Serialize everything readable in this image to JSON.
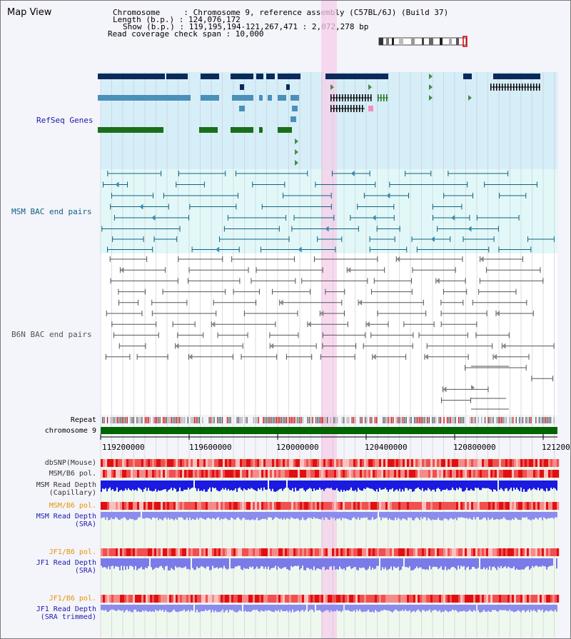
{
  "title": "Map View",
  "info": {
    "chromosome_line": "Chromosome     : Chromosome 9, reference assembly (C57BL/6J) (Build 37)",
    "length_line": "Length (b.p.) : 124,076,172",
    "show_line": "Show (b.p.) : 119,195,194-121,267,471 : 2,072,278 bp",
    "span_line": "Read coverage check span : 10,000"
  },
  "tracks": {
    "refseq": "RefSeq Genes",
    "msm_bac": "MSM BAC end pairs",
    "b6n_bac": "B6N BAC end pairs",
    "repeat": "Repeat",
    "chromosome": "chromosome 9"
  },
  "axis": {
    "ticks": [
      "119200000",
      "119600000",
      "120000000",
      "120400000",
      "120800000",
      "121200"
    ]
  },
  "lower_tracks": [
    {
      "label": "dbSNP(Mouse)",
      "color": "#333333"
    },
    {
      "label": "MSM/B6 pol.",
      "color": "#333333"
    },
    {
      "label": "MSM Read Depth\n(Capillary)",
      "color": "#333333"
    },
    {
      "label": "MSM/B6 pol.",
      "color": "#e69500"
    },
    {
      "label": "MSM Read Depth\n(SRA)",
      "color": "#1a1aaa"
    },
    {
      "label": "JF1/B6 pol.",
      "color": "#e69500"
    },
    {
      "label": "JF1 Read Depth\n(SRA)",
      "color": "#1a1aaa"
    },
    {
      "label": "JF1/B6 pol.",
      "color": "#e69500"
    },
    {
      "label": "JF1 Read Depth\n(SRA trimmed)",
      "color": "#1a1aaa"
    }
  ],
  "colors": {
    "refseq_label": "#1a1aaa",
    "msm_label": "#106080",
    "b6n_label": "#555555",
    "highlight": "#f6cdea",
    "chromosome_bar": "#006400"
  }
}
